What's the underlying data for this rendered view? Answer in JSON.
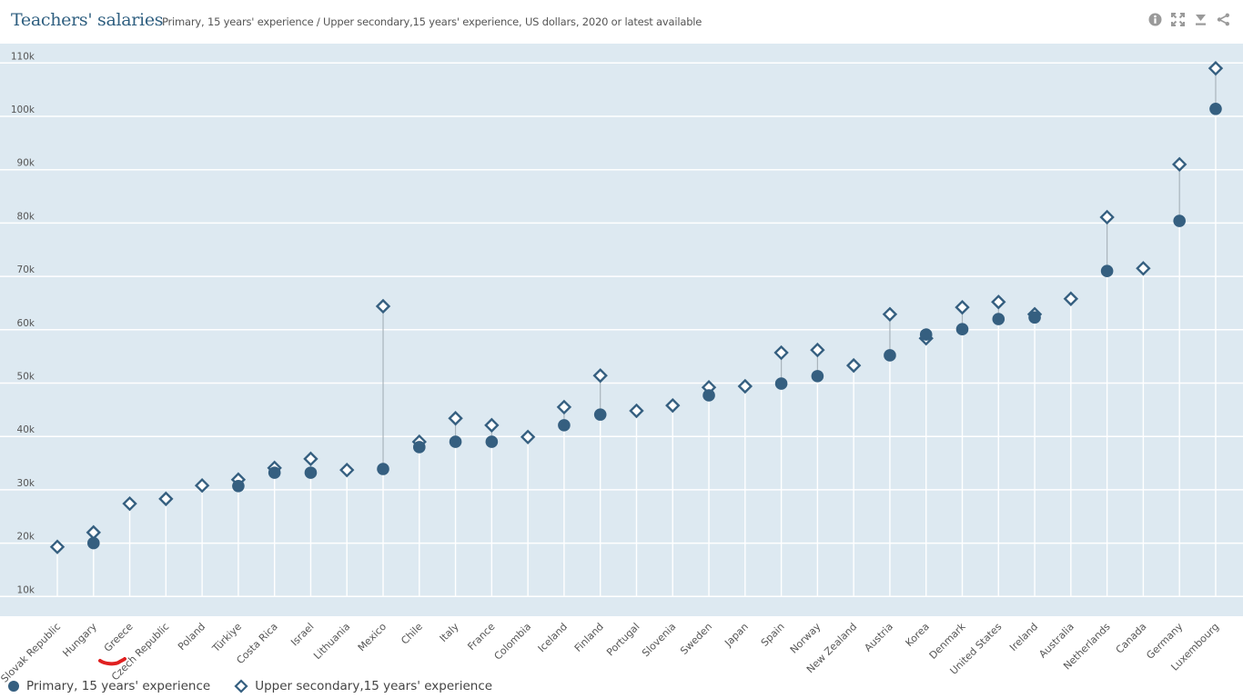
{
  "header": {
    "title": "Teachers' salaries",
    "subtitle": "Primary, 15 years' experience / Upper secondary,15 years' experience, US dollars, 2020 or latest available",
    "tools": [
      {
        "name": "info-icon",
        "label": "Info"
      },
      {
        "name": "fullscreen-icon",
        "label": "Fullscreen"
      },
      {
        "name": "download-icon",
        "label": "Download"
      },
      {
        "name": "share-icon",
        "label": "Share"
      }
    ]
  },
  "colors": {
    "marker": "#355f80",
    "plot_bg": "#dde9f1",
    "grid": "#ffffff",
    "connector": "#a9b4bc",
    "annotation": "#e02020"
  },
  "chart_data": {
    "type": "scatter",
    "subtype": "dot-range",
    "title": "Teachers' salaries",
    "subtitle": "Primary, 15 years' experience / Upper secondary,15 years' experience, US dollars, 2020 or latest available",
    "xlabel": "",
    "ylabel": "",
    "ylim": [
      0,
      110000
    ],
    "yticks": [
      10000,
      20000,
      30000,
      40000,
      50000,
      60000,
      70000,
      80000,
      90000,
      100000,
      110000
    ],
    "ytick_labels": [
      "10k",
      "20k",
      "30k",
      "40k",
      "50k",
      "60k",
      "70k",
      "80k",
      "90k",
      "100k",
      "110k"
    ],
    "grid": true,
    "legend_position": "bottom-left",
    "categories": [
      "Slovak Republic",
      "Hungary",
      "Greece",
      "Czech Republic",
      "Poland",
      "Türkiye",
      "Costa Rica",
      "Israel",
      "Lithuania",
      "Mexico",
      "Chile",
      "Italy",
      "France",
      "Colombia",
      "Iceland",
      "Finland",
      "Portugal",
      "Slovenia",
      "Sweden",
      "Japan",
      "Spain",
      "Norway",
      "New Zealand",
      "Austria",
      "Korea",
      "Denmark",
      "United States",
      "Ireland",
      "Australia",
      "Netherlands",
      "Canada",
      "Germany",
      "Luxembourg"
    ],
    "series": [
      {
        "name": "Primary, 15 years' experience",
        "marker": "circle",
        "values": [
          19300,
          20000,
          27400,
          28300,
          30800,
          30700,
          33200,
          33200,
          33700,
          33900,
          38000,
          39000,
          39000,
          39900,
          42100,
          44100,
          44800,
          45800,
          47700,
          49400,
          49900,
          51300,
          53300,
          55200,
          59100,
          60100,
          62000,
          62300,
          65800,
          71000,
          71500,
          80400,
          101400
        ]
      },
      {
        "name": "Upper secondary,15 years' experience",
        "marker": "diamond",
        "values": [
          19300,
          22000,
          27400,
          28300,
          30800,
          31900,
          34100,
          35800,
          33700,
          64400,
          39000,
          43400,
          42100,
          39900,
          45500,
          51400,
          44800,
          45800,
          49200,
          49400,
          55700,
          56200,
          53300,
          62900,
          58400,
          64200,
          65200,
          62900,
          65800,
          81100,
          71500,
          91000,
          109000
        ]
      }
    ],
    "primary_visible": [
      false,
      true,
      false,
      false,
      false,
      true,
      true,
      true,
      false,
      true,
      true,
      true,
      true,
      false,
      true,
      true,
      false,
      false,
      true,
      false,
      true,
      true,
      false,
      true,
      true,
      true,
      true,
      true,
      false,
      true,
      false,
      true,
      true
    ]
  },
  "legend": {
    "primary_label": "Primary, 15 years' experience",
    "upper_label": "Upper secondary,15 years' experience"
  }
}
